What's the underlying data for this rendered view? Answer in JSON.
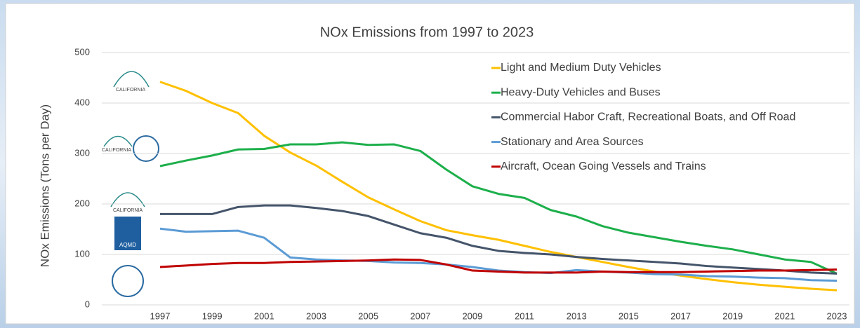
{
  "logos": [
    "CALIFORNIA",
    "CALIFORNIA",
    "CALIFORNIA",
    "AQMD"
  ],
  "chart_data": {
    "type": "line",
    "title": "NOx Emissions from 1997 to 2023",
    "y_label": "NOx Emissions  (Tons per Day)",
    "x": [
      1997,
      1998,
      1999,
      2000,
      2001,
      2002,
      2003,
      2004,
      2005,
      2006,
      2007,
      2008,
      2009,
      2010,
      2011,
      2012,
      2013,
      2014,
      2015,
      2016,
      2017,
      2018,
      2019,
      2020,
      2021,
      2022,
      2023
    ],
    "xlim": [
      1997,
      2023
    ],
    "xticks": [
      1997,
      1999,
      2001,
      2003,
      2005,
      2007,
      2009,
      2011,
      2013,
      2015,
      2017,
      2019,
      2021,
      2023
    ],
    "ylim": [
      0,
      500
    ],
    "yticks": [
      0,
      100,
      200,
      300,
      400,
      500
    ],
    "grid": true,
    "legend": "top-right",
    "series": [
      {
        "name": "Light and Medium Duty Vehicles",
        "color": "#FFC000",
        "values": [
          442,
          424,
          400,
          380,
          335,
          302,
          276,
          244,
          213,
          189,
          166,
          148,
          138,
          129,
          117,
          105,
          95,
          85,
          75,
          66,
          58,
          51,
          45,
          40,
          36,
          32,
          29
        ]
      },
      {
        "name": "Heavy-Duty Vehicles and Buses",
        "color": "#1DAF4B",
        "values": [
          275,
          286,
          296,
          308,
          309,
          318,
          318,
          322,
          317,
          318,
          305,
          268,
          235,
          220,
          212,
          188,
          175,
          156,
          143,
          134,
          125,
          117,
          110,
          100,
          90,
          85,
          62
        ]
      },
      {
        "name": "Commercial Habor Craft, Recreational Boats, and Off Road",
        "color": "#44546A",
        "values": [
          180,
          180,
          180,
          194,
          197,
          197,
          192,
          186,
          176,
          159,
          142,
          133,
          117,
          107,
          103,
          100,
          95,
          91,
          88,
          85,
          82,
          77,
          74,
          71,
          68,
          64,
          62
        ]
      },
      {
        "name": "Stationary and Area Sources",
        "color": "#5B9BD5",
        "values": [
          151,
          145,
          146,
          147,
          133,
          94,
          90,
          88,
          87,
          84,
          83,
          80,
          75,
          68,
          65,
          63,
          69,
          66,
          64,
          61,
          60,
          57,
          56,
          54,
          53,
          49,
          48
        ]
      },
      {
        "name": "Aircraft, Ocean Going Vessels and Trains",
        "color": "#C00000",
        "values": [
          75,
          78,
          81,
          83,
          83,
          85,
          86,
          87,
          88,
          90,
          89,
          80,
          68,
          66,
          64,
          64,
          64,
          66,
          65,
          65,
          65,
          66,
          67,
          68,
          68,
          69,
          70
        ]
      }
    ]
  }
}
